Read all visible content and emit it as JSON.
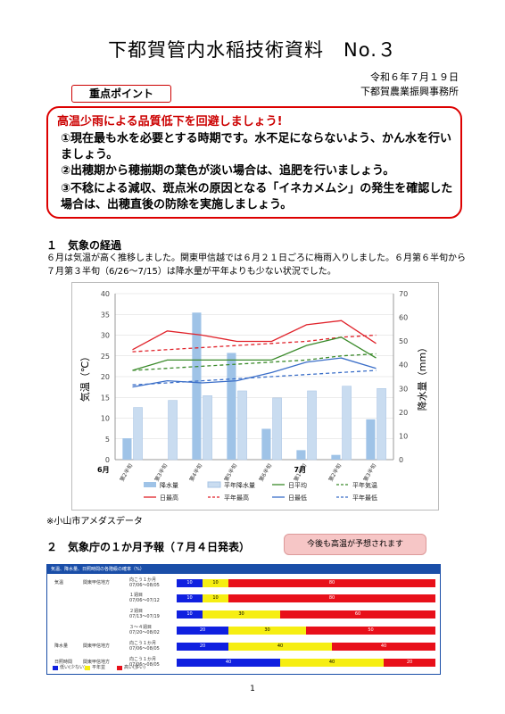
{
  "header": {
    "title": "下都賀管内水稲技術資料　No.３",
    "date": "令和６年７月１９日",
    "office": "下都賀農業振興事務所"
  },
  "points": {
    "tag": "重点ポイント",
    "headline": "高温少雨による品質低下を回避しましょう!",
    "items": [
      "①現在最も水を必要とする時期です。水不足にならないよう、かん水を行いましょう。",
      "②出穂期から穂揃期の葉色が淡い場合は、追肥を行いましょう。",
      "③不稔による減収、斑点米の原因となる「イネカメムシ」の発生を確認した場合は、出穂直後の防除を実施しましょう。"
    ]
  },
  "section1": {
    "heading": "１　気象の経過",
    "body": "６月は気温が高く推移しました。関東甲信越では６月２１日ごろに梅雨入りしました。６月第６半旬から７月第３半旬（6/26～7/15）は降水量が平年よりも少ない状況でした。",
    "source": "※小山市アメダスデータ"
  },
  "chart_data": {
    "type": "line",
    "categories": [
      "第2半旬",
      "第3半旬",
      "第4半旬",
      "第5半旬",
      "第6半旬",
      "第1半旬",
      "第2半旬",
      "第3半旬"
    ],
    "month_labels": [
      "6月",
      "7月"
    ],
    "ylabel_left": "気温（℃）",
    "ylabel_right": "降水量（mm）",
    "ylim_left": [
      0,
      40
    ],
    "ylim_right": [
      0,
      70
    ],
    "yticks_left": [
      0,
      5,
      10,
      15,
      20,
      25,
      30,
      35,
      40
    ],
    "yticks_right": [
      0,
      10,
      20,
      30,
      40,
      50,
      60,
      70
    ],
    "bars": [
      {
        "name": "降水量",
        "color": "#9fc3e7",
        "values": [
          9,
          0,
          62,
          45,
          13,
          4,
          2,
          17
        ]
      },
      {
        "name": "平年降水量",
        "color": "#c9dcf0",
        "values": [
          22,
          25,
          27,
          29,
          26,
          29,
          31,
          30
        ]
      }
    ],
    "series": [
      {
        "name": "日最高",
        "color": "#e0222a",
        "dash": false,
        "values": [
          26.5,
          31,
          30,
          28.5,
          28.5,
          32.5,
          33.5,
          28
        ]
      },
      {
        "name": "平年最高",
        "color": "#e0222a",
        "dash": true,
        "values": [
          26,
          26.5,
          27,
          27.5,
          28,
          28.5,
          29.5,
          30
        ]
      },
      {
        "name": "日平均",
        "color": "#3a8a2a",
        "dash": false,
        "values": [
          21.5,
          24,
          24,
          24,
          24,
          27.5,
          29.5,
          24.5
        ]
      },
      {
        "name": "平年気温",
        "color": "#3a8a2a",
        "dash": true,
        "values": [
          21.5,
          22,
          22.5,
          23,
          23.5,
          24,
          25,
          25.5
        ]
      },
      {
        "name": "日最低",
        "color": "#3a6ec8",
        "dash": false,
        "values": [
          17.5,
          19,
          18.5,
          19,
          21,
          23.5,
          24.5,
          22
        ]
      },
      {
        "name": "平年最低",
        "color": "#3a6ec8",
        "dash": true,
        "values": [
          18,
          18.5,
          19,
          19.5,
          20,
          20.5,
          21,
          21.5
        ]
      }
    ]
  },
  "section2": {
    "heading": "２　気象庁の１か月予報（７月４日発表）",
    "callout": "今後も高温が予想されます",
    "table_title": "気温、降水量、日照時間の各階級の確率（%）",
    "rows": [
      {
        "group": "気温",
        "region": "関東甲信地方",
        "period": "向こう１か月",
        "dates": "07/06～08/05",
        "probs": [
          10,
          10,
          80
        ]
      },
      {
        "group": "",
        "region": "",
        "period": "１週目",
        "dates": "07/06～07/12",
        "probs": [
          10,
          10,
          80
        ]
      },
      {
        "group": "",
        "region": "",
        "period": "２週目",
        "dates": "07/13～07/19",
        "probs": [
          10,
          30,
          60
        ]
      },
      {
        "group": "",
        "region": "",
        "period": "３～４週目",
        "dates": "07/20～08/02",
        "probs": [
          20,
          30,
          50
        ]
      },
      {
        "group": "降水量",
        "region": "関東甲信地方",
        "period": "向こう１か月",
        "dates": "07/06～08/05",
        "probs": [
          20,
          40,
          40
        ]
      },
      {
        "group": "日照時間",
        "region": "関東甲信地方",
        "period": "向こう１か月",
        "dates": "07/06～08/05",
        "probs": [
          40,
          40,
          20
        ]
      }
    ],
    "legend": [
      "低い(少ない)",
      "平年並",
      "高い(多い)"
    ],
    "colors": {
      "low": "#1020e0",
      "normal": "#f6ee12",
      "high": "#e8101a"
    }
  },
  "footer": {
    "page": "1"
  }
}
